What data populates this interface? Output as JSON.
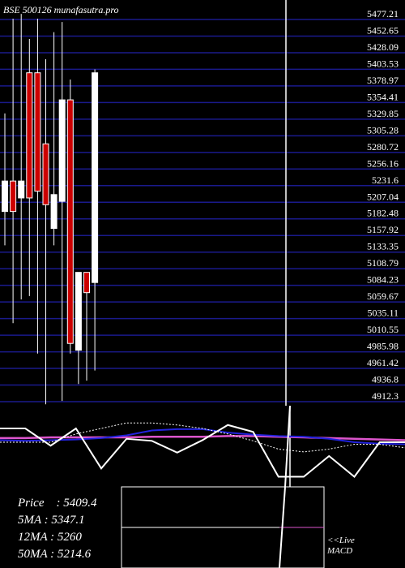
{
  "title": "BSE 500126 munafasutra.pro",
  "readout": [
    {
      "label": "Price",
      "value": "5409.4"
    },
    {
      "label": "5MA",
      "value": "5347.1"
    },
    {
      "label": "12MA",
      "value": "5260"
    },
    {
      "label": "50MA",
      "value": "5214.6"
    }
  ],
  "macd_label": [
    "<<Live",
    "MACD"
  ],
  "colors": {
    "background": "#000000",
    "grid": "#1a1a8c",
    "up_candle": "#ffffff",
    "down_candle": "#cc0000",
    "ma_blue": "#2222dd",
    "ma_magenta": "#dd55cc",
    "text": "#ffffff"
  },
  "chart_data": {
    "type": "candlestick",
    "y_ticks": [
      "5477.21",
      "5452.65",
      "5428.09",
      "5403.53",
      "5378.97",
      "5354.41",
      "5329.85",
      "5305.28",
      "5280.72",
      "5256.16",
      "5231.6",
      "5207.04",
      "5182.48",
      "5157.92",
      "5133.35",
      "5108.79",
      "5084.23",
      "5059.67",
      "5035.11",
      "5010.55",
      "4985.98",
      "4961.42",
      "4936.8",
      "4912.3"
    ],
    "ylim": [
      4912.3,
      5477.21
    ],
    "grid": true,
    "candles": [
      {
        "open": 5185,
        "high": 5330,
        "low": 5135,
        "close": 5230,
        "color": "white"
      },
      {
        "open": 5230,
        "high": 5470,
        "low": 5020,
        "close": 5185,
        "color": "red"
      },
      {
        "open": 5205,
        "high": 5477,
        "low": 5055,
        "close": 5230,
        "color": "white"
      },
      {
        "open": 5390,
        "high": 5440,
        "low": 5060,
        "close": 5205,
        "color": "red"
      },
      {
        "open": 5390,
        "high": 5470,
        "low": 4975,
        "close": 5215,
        "color": "red"
      },
      {
        "open": 5285,
        "high": 5410,
        "low": 4900,
        "close": 5195,
        "color": "red"
      },
      {
        "open": 5210,
        "high": 5450,
        "low": 5135,
        "close": 5160,
        "color": "white"
      },
      {
        "open": 5200,
        "high": 5465,
        "low": 4905,
        "close": 5350,
        "color": "white"
      },
      {
        "open": 5350,
        "high": 5380,
        "low": 4975,
        "close": 4990,
        "color": "red"
      },
      {
        "open": 4980,
        "high": 5090,
        "low": 4930,
        "close": 5095,
        "color": "white"
      },
      {
        "open": 5095,
        "high": 5090,
        "low": 4935,
        "close": 5065,
        "color": "red"
      },
      {
        "open": 5080,
        "high": 5395,
        "low": 4950,
        "close": 5390,
        "color": "white"
      }
    ],
    "indicator": {
      "zero_level": 0,
      "white_line": [
        20,
        20,
        -5,
        20,
        -38,
        5,
        2,
        -15,
        3,
        25,
        15,
        -50,
        -50,
        -20,
        -50,
        0,
        0
      ],
      "dotted_line": [
        0,
        0,
        0,
        12,
        20,
        28,
        28,
        25,
        20,
        12,
        2,
        -10,
        -14,
        -10,
        -3,
        -3,
        -8
      ],
      "blue_line": [
        3,
        2,
        3,
        4,
        6,
        10,
        17,
        19,
        19,
        14,
        11,
        9,
        8,
        5,
        0,
        -2,
        -3
      ],
      "magenta_line": [
        6,
        6,
        7,
        7,
        7,
        7,
        8,
        8,
        8,
        9,
        9,
        8,
        7,
        6,
        5,
        4,
        3
      ]
    }
  }
}
